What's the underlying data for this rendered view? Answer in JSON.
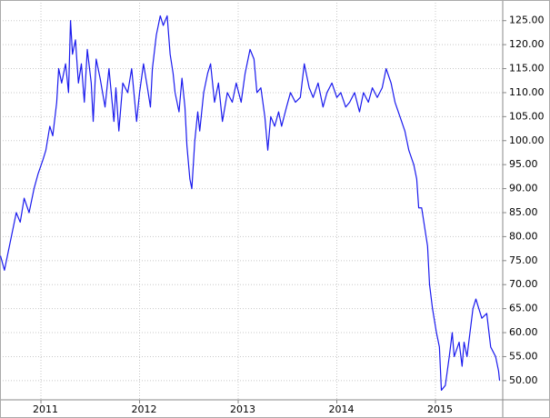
{
  "chart_data": {
    "type": "line",
    "x": [
      2010.59,
      2010.63,
      2010.68,
      2010.72,
      2010.75,
      2010.79,
      2010.83,
      2010.88,
      2010.93,
      2010.97,
      2011.02,
      2011.05,
      2011.09,
      2011.12,
      2011.16,
      2011.18,
      2011.21,
      2011.25,
      2011.28,
      2011.3,
      2011.32,
      2011.35,
      2011.38,
      2011.41,
      2011.44,
      2011.47,
      2011.51,
      2011.53,
      2011.56,
      2011.6,
      2011.65,
      2011.69,
      2011.74,
      2011.76,
      2011.79,
      2011.83,
      2011.88,
      2011.92,
      2011.97,
      2012.0,
      2012.04,
      2012.08,
      2012.11,
      2012.13,
      2012.17,
      2012.21,
      2012.24,
      2012.28,
      2012.31,
      2012.34,
      2012.36,
      2012.4,
      2012.43,
      2012.46,
      2012.48,
      2012.51,
      2012.53,
      2012.56,
      2012.59,
      2012.61,
      2012.65,
      2012.69,
      2012.72,
      2012.76,
      2012.8,
      2012.84,
      2012.89,
      2012.94,
      2012.98,
      2013.03,
      2013.07,
      2013.12,
      2013.16,
      2013.19,
      2013.23,
      2013.27,
      2013.3,
      2013.33,
      2013.37,
      2013.41,
      2013.44,
      2013.49,
      2013.53,
      2013.58,
      2013.63,
      2013.67,
      2013.72,
      2013.76,
      2013.81,
      2013.86,
      2013.9,
      2013.95,
      2014.0,
      2014.04,
      2014.09,
      2014.13,
      2014.18,
      2014.23,
      2014.27,
      2014.32,
      2014.36,
      2014.41,
      2014.46,
      2014.5,
      2014.55,
      2014.59,
      2014.64,
      2014.69,
      2014.73,
      2014.78,
      2014.81,
      2014.83,
      2014.86,
      2014.89,
      2014.92,
      2014.94,
      2014.97,
      2015.01,
      2015.04,
      2015.06,
      2015.1,
      2015.14,
      2015.17,
      2015.19,
      2015.24,
      2015.27,
      2015.29,
      2015.32,
      2015.35,
      2015.38,
      2015.41,
      2015.44,
      2015.47,
      2015.52,
      2015.56,
      2015.61,
      2015.64,
      2015.65
    ],
    "series": [
      {
        "color": "#1a1aee",
        "values": [
          76,
          73,
          78,
          82,
          85,
          83,
          88,
          85,
          90,
          93,
          96,
          98,
          103,
          101,
          108,
          115,
          112,
          116,
          110,
          125,
          118,
          121,
          112,
          116,
          108,
          119,
          112,
          104,
          117,
          113,
          107,
          115,
          104,
          111,
          102,
          112,
          110,
          115,
          104,
          110,
          116,
          111,
          107,
          115,
          122,
          126,
          124,
          126,
          118,
          114,
          110,
          106,
          113,
          107,
          99,
          92,
          90,
          100,
          106,
          102,
          110,
          114,
          116,
          108,
          112,
          104,
          110,
          108,
          112,
          108,
          114,
          119,
          117,
          110,
          111,
          105,
          98,
          105,
          103,
          106,
          103,
          107,
          110,
          108,
          109,
          116,
          111,
          109,
          112,
          107,
          110,
          112,
          109,
          110,
          107,
          108,
          110,
          106,
          110,
          108,
          111,
          109,
          111,
          115,
          112,
          108,
          105,
          102,
          98,
          95,
          92,
          86,
          86,
          82,
          78,
          70,
          65,
          60,
          57,
          48,
          49,
          55,
          60,
          55,
          58,
          53,
          58,
          55,
          60,
          65,
          67,
          65,
          63,
          64,
          57,
          55,
          52,
          50
        ]
      }
    ],
    "xlim": [
      2010.585,
      2015.682
    ],
    "xticks": [
      2011,
      2012,
      2013,
      2014,
      2015
    ],
    "ylim": [
      46,
      129.3
    ],
    "yticks": [
      {
        "value": 50,
        "label": "50.00"
      },
      {
        "value": 55,
        "label": "55.00"
      },
      {
        "value": 60,
        "label": "60.00"
      },
      {
        "value": 65,
        "label": "65.00"
      },
      {
        "value": 70,
        "label": "70.00"
      },
      {
        "value": 75,
        "label": "75.00"
      },
      {
        "value": 80,
        "label": "80.00"
      },
      {
        "value": 85,
        "label": "85.00"
      },
      {
        "value": 90,
        "label": "90.00"
      },
      {
        "value": 95,
        "label": "95.00"
      },
      {
        "value": 100,
        "label": "100.00"
      },
      {
        "value": 105,
        "label": "105.00"
      },
      {
        "value": 110,
        "label": "110.00"
      },
      {
        "value": 115,
        "label": "115.00"
      },
      {
        "value": 120,
        "label": "120.00"
      },
      {
        "value": 125,
        "label": "125.00"
      }
    ],
    "grid": true
  }
}
